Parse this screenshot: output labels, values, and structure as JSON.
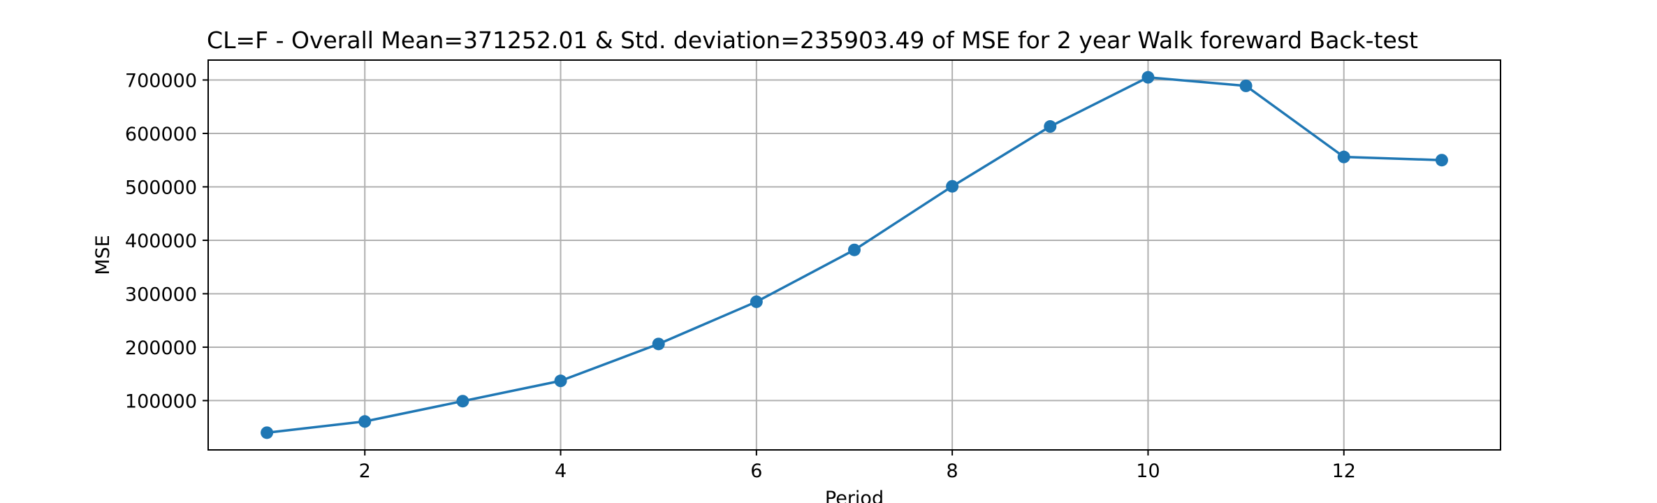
{
  "chart_data": {
    "type": "line",
    "title": "CL=F - Overall Mean=371252.01 & Std. deviation=235903.49 of MSE for 2 year Walk foreward Back-test",
    "xlabel": "Period",
    "ylabel": "MSE",
    "x": [
      1,
      2,
      3,
      4,
      5,
      6,
      7,
      8,
      9,
      10,
      11,
      12,
      13
    ],
    "series": [
      {
        "values": [
          40000,
          61000,
          99000,
          137000,
          206000,
          285000,
          382000,
          501000,
          613000,
          705000,
          689000,
          556000,
          550000
        ],
        "color": "#1f77b4"
      }
    ],
    "xlim": [
      0.4,
      13.6
    ],
    "ylim": [
      7750,
      737250
    ],
    "xticks": [
      2,
      4,
      6,
      8,
      10,
      12
    ],
    "xtick_labels": [
      "2",
      "4",
      "6",
      "8",
      "10",
      "12"
    ],
    "yticks": [
      100000,
      200000,
      300000,
      400000,
      500000,
      600000,
      700000
    ],
    "ytick_labels": [
      "100000",
      "200000",
      "300000",
      "400000",
      "500000",
      "600000",
      "700000"
    ],
    "grid": true,
    "marker": "circle"
  }
}
